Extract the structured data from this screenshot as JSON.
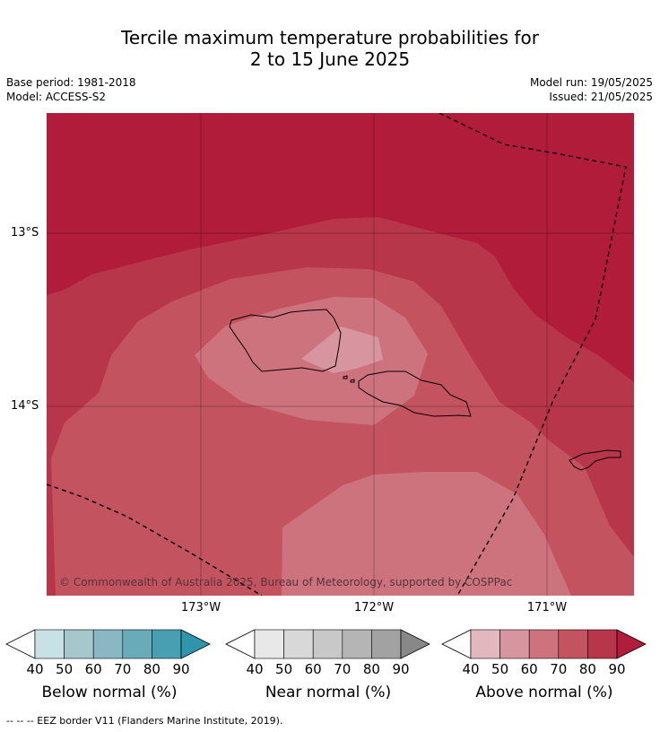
{
  "title_line1": "Tercile maximum temperature probabilities for",
  "title_line2": "2 to 15 June 2025",
  "meta_left": {
    "line1": "Base period: 1981-2018",
    "line2": "Model: ACCESS-S2"
  },
  "meta_right": {
    "line1": "Model run: 19/05/2025",
    "line2": "Issued: 21/05/2025"
  },
  "lat_labels": [
    "13°S",
    "14°S"
  ],
  "lon_labels": [
    "173°W",
    "172°W",
    "171°W"
  ],
  "copyright": "© Commonwealth of Australia 2025, Bureau of Meteorology, supported by COSPPac",
  "colorbars": [
    {
      "label": "Below normal (%)",
      "ticks": [
        "40",
        "50",
        "60",
        "70",
        "80",
        "90"
      ],
      "colors": [
        "#ffffff",
        "#c7e1e7",
        "#a6c7cc",
        "#89b8c4",
        "#6aabb9",
        "#489fb1",
        "#2e95ab"
      ]
    },
    {
      "label": "Near normal (%)",
      "ticks": [
        "40",
        "50",
        "60",
        "70",
        "80",
        "90"
      ],
      "colors": [
        "#ffffff",
        "#e8e8e8",
        "#d8d8d8",
        "#c8c8c8",
        "#b5b5b5",
        "#a2a2a2",
        "#888888"
      ]
    },
    {
      "label": "Above normal (%)",
      "ticks": [
        "40",
        "50",
        "60",
        "70",
        "80",
        "90"
      ],
      "colors": [
        "#ffffff",
        "#e2b8bf",
        "#d7969f",
        "#cd737d",
        "#c3535f",
        "#b8364a",
        "#b01c3a"
      ]
    }
  ],
  "footnote": "--  --  -- EEZ border V11 (Flanders Marine Institute, 2019)."
}
